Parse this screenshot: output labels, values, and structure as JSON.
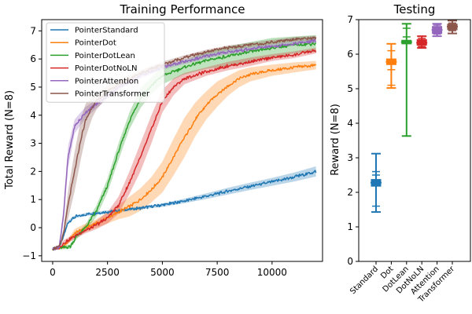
{
  "chart_data": [
    {
      "type": "line",
      "title": "Training Performance",
      "xlabel": "",
      "ylabel": "Total Reward (N=8)",
      "xlim": [
        -500,
        12300
      ],
      "ylim": [
        -1.2,
        7.4
      ],
      "xticks": [
        0,
        2500,
        5000,
        7500,
        10000
      ],
      "yticks": [
        -1,
        0,
        1,
        2,
        3,
        4,
        5,
        6,
        7
      ],
      "legend_position": "top-left",
      "grid": false,
      "series": [
        {
          "name": "PointerStandard",
          "color": "#1f77b4",
          "x": [
            0,
            300,
            500,
            700,
            1000,
            1500,
            2000,
            2500,
            3000,
            4000,
            5000,
            6000,
            7000,
            8000,
            9000,
            10000,
            11000,
            12000
          ],
          "y": [
            -0.75,
            -0.7,
            -0.3,
            0.2,
            0.38,
            0.47,
            0.52,
            0.56,
            0.6,
            0.7,
            0.8,
            0.95,
            1.12,
            1.3,
            1.47,
            1.63,
            1.8,
            2.0
          ],
          "band": [
            0.02,
            0.03,
            0.06,
            0.06,
            0.05,
            0.05,
            0.05,
            0.05,
            0.05,
            0.05,
            0.06,
            0.08,
            0.1,
            0.12,
            0.13,
            0.14,
            0.16,
            0.18
          ]
        },
        {
          "name": "PointerDot",
          "color": "#ff7f0e",
          "x": [
            0,
            500,
            800,
            1000,
            1500,
            2000,
            2500,
            3000,
            3500,
            4000,
            4500,
            5000,
            5500,
            6000,
            6500,
            7000,
            7500,
            8000,
            8500,
            9000,
            10000,
            11000,
            12000
          ],
          "y": [
            -0.75,
            -0.7,
            -0.4,
            -0.2,
            0.0,
            0.15,
            0.35,
            0.55,
            0.75,
            1.0,
            1.35,
            1.8,
            2.5,
            3.2,
            3.85,
            4.35,
            4.75,
            5.05,
            5.3,
            5.45,
            5.6,
            5.7,
            5.78
          ],
          "band": [
            0.05,
            0.05,
            0.1,
            0.15,
            0.15,
            0.15,
            0.2,
            0.25,
            0.35,
            0.4,
            0.45,
            0.55,
            0.65,
            0.7,
            0.6,
            0.5,
            0.45,
            0.35,
            0.3,
            0.25,
            0.2,
            0.18,
            0.15
          ]
        },
        {
          "name": "PointerDotLean",
          "color": "#2ca02c",
          "x": [
            0,
            300,
            800,
            1100,
            1500,
            2000,
            2500,
            3000,
            3500,
            4000,
            4500,
            5000,
            6000,
            7000,
            8000,
            9000,
            10000,
            11000,
            12000
          ],
          "y": [
            -0.75,
            -0.72,
            -0.68,
            -0.3,
            0.0,
            0.6,
            1.5,
            2.7,
            3.8,
            4.6,
            5.05,
            5.4,
            5.7,
            5.95,
            6.1,
            6.25,
            6.4,
            6.5,
            6.55
          ],
          "band": [
            0.05,
            0.05,
            0.08,
            0.1,
            0.12,
            0.2,
            0.25,
            0.3,
            0.3,
            0.35,
            0.3,
            0.3,
            0.25,
            0.3,
            0.35,
            0.35,
            0.35,
            0.3,
            0.3
          ]
        },
        {
          "name": "PointerDotNoLN",
          "color": "#d62728",
          "x": [
            0,
            300,
            500,
            1000,
            1500,
            2000,
            2500,
            3000,
            3500,
            4000,
            4500,
            5000,
            5500,
            6000,
            7000,
            8000,
            9000,
            10000,
            11000,
            12000
          ],
          "y": [
            -0.75,
            -0.72,
            -0.55,
            -0.3,
            -0.1,
            0.1,
            0.35,
            0.8,
            1.6,
            2.5,
            3.5,
            4.5,
            5.0,
            5.3,
            5.55,
            5.75,
            5.9,
            6.05,
            6.15,
            6.3
          ],
          "band": [
            0.05,
            0.05,
            0.1,
            0.1,
            0.1,
            0.15,
            0.2,
            0.3,
            0.4,
            0.5,
            0.5,
            0.4,
            0.3,
            0.2,
            0.15,
            0.15,
            0.15,
            0.12,
            0.12,
            0.1
          ]
        },
        {
          "name": "PointerAttention",
          "color": "#9467bd",
          "x": [
            0,
            300,
            500,
            700,
            1000,
            1500,
            2000,
            2500,
            3000,
            4000,
            5000,
            6000,
            7000,
            8000,
            9000,
            10000,
            11000,
            12000
          ],
          "y": [
            -0.75,
            -0.7,
            0.5,
            2.5,
            3.6,
            4.1,
            4.4,
            4.7,
            5.0,
            5.4,
            5.7,
            5.9,
            6.1,
            6.25,
            6.35,
            6.45,
            6.55,
            6.65
          ],
          "band": [
            0.05,
            0.05,
            0.3,
            0.4,
            0.25,
            0.2,
            0.15,
            0.12,
            0.1,
            0.1,
            0.08,
            0.08,
            0.08,
            0.08,
            0.08,
            0.08,
            0.08,
            0.08
          ]
        },
        {
          "name": "PointerTransformer",
          "color": "#8c564b",
          "x": [
            0,
            300,
            500,
            700,
            1000,
            1300,
            1500,
            1800,
            2000,
            2500,
            3000,
            4000,
            5000,
            6000,
            7000,
            8000,
            9000,
            10000,
            11000,
            12000
          ],
          "y": [
            -0.75,
            -0.7,
            -0.2,
            0.8,
            2.0,
            3.2,
            3.8,
            4.3,
            4.5,
            4.85,
            5.1,
            5.5,
            5.8,
            6.05,
            6.25,
            6.4,
            6.5,
            6.6,
            6.7,
            6.75
          ],
          "band": [
            0.05,
            0.05,
            0.2,
            0.5,
            0.7,
            0.7,
            0.6,
            0.4,
            0.3,
            0.2,
            0.15,
            0.1,
            0.1,
            0.08,
            0.08,
            0.08,
            0.08,
            0.08,
            0.08,
            0.08
          ]
        }
      ]
    },
    {
      "type": "box",
      "title": "Testing",
      "xlabel": "",
      "ylabel": "Reward (N=8)",
      "ylim": [
        0,
        7
      ],
      "yticks": [
        0,
        1,
        2,
        3,
        4,
        5,
        6,
        7
      ],
      "categories": [
        "Standard",
        "Dot",
        "DotLean",
        "DotNoLN",
        "Attention",
        "Transformer"
      ],
      "colors": [
        "#1f77b4",
        "#ff7f0e",
        "#2ca02c",
        "#d62728",
        "#9467bd",
        "#8c564b"
      ],
      "boxes": [
        {
          "whisker_low": 1.43,
          "q1": 2.2,
          "median": 2.28,
          "q3": 2.35,
          "whisker_high": 3.12,
          "extra_lines": [
            1.6,
            2.5,
            2.6
          ]
        },
        {
          "whisker_low": 5.02,
          "q1": 5.72,
          "median": 5.78,
          "q3": 5.84,
          "whisker_high": 6.3,
          "extra_lines": [
            5.1,
            5.55,
            6.1
          ]
        },
        {
          "whisker_low": 3.63,
          "q1": 6.32,
          "median": 6.35,
          "q3": 6.38,
          "whisker_high": 6.88,
          "extra_lines": [
            6.5,
            6.75
          ]
        },
        {
          "whisker_low": 6.18,
          "q1": 6.28,
          "median": 6.33,
          "q3": 6.4,
          "whisker_high": 6.52,
          "extra_lines": [
            6.22,
            6.46
          ]
        },
        {
          "whisker_low": 6.52,
          "q1": 6.62,
          "median": 6.7,
          "q3": 6.78,
          "whisker_high": 6.88,
          "extra_lines": [
            6.58,
            6.84
          ]
        },
        {
          "whisker_low": 6.6,
          "q1": 6.73,
          "median": 6.8,
          "q3": 6.85,
          "whisker_high": 6.97,
          "extra_lines": [
            6.68,
            6.9
          ]
        }
      ]
    }
  ]
}
